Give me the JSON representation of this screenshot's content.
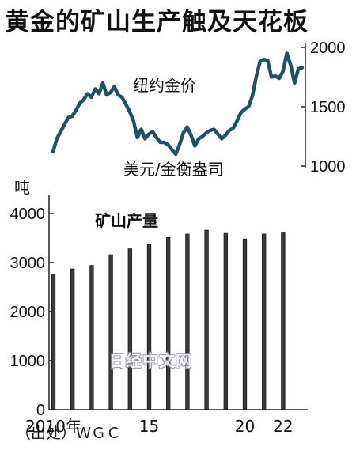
{
  "title": "黄金的矿山生产触及天花板",
  "source": "（出处）ＷＧＣ",
  "watermark": "日经中文网",
  "chart_data": [
    {
      "type": "line",
      "series": [
        {
          "name": "纽约金价",
          "values": [
            1120,
            1230,
            1290,
            1350,
            1410,
            1420,
            1470,
            1530,
            1560,
            1610,
            1580,
            1650,
            1610,
            1700,
            1600,
            1620,
            1670,
            1600,
            1580,
            1520,
            1460,
            1380,
            1240,
            1310,
            1230,
            1270,
            1290,
            1240,
            1200,
            1200,
            1180,
            1140,
            1100,
            1180,
            1280,
            1330,
            1260,
            1170,
            1230,
            1250,
            1280,
            1300,
            1310,
            1270,
            1230,
            1260,
            1300,
            1320,
            1380,
            1450,
            1480,
            1500,
            1590,
            1750,
            1880,
            1900,
            1890,
            1750,
            1760,
            1740,
            1800,
            1950,
            1850,
            1700,
            1820,
            1830
          ]
        }
      ],
      "annotation": "美元/金衡盎司",
      "y_ticks": [
        "1000",
        "1500",
        "2000"
      ],
      "ylim": [
        1000,
        2000
      ],
      "y_axis_side": "right"
    },
    {
      "type": "bar",
      "title": "矿山产量",
      "ylabel": "吨",
      "categories": [
        "2010",
        "2011",
        "2012",
        "2013",
        "2014",
        "2015",
        "2016",
        "2017",
        "2018",
        "2019",
        "2020",
        "2021",
        "2022"
      ],
      "values": [
        2750,
        2870,
        2940,
        3160,
        3280,
        3370,
        3510,
        3580,
        3660,
        3610,
        3480,
        3580,
        3620
      ],
      "ylim": [
        0,
        4000
      ],
      "y_ticks": [
        "0",
        "1000",
        "2000",
        "3000",
        "4000"
      ],
      "x_tick_labels": [
        {
          "label": "2010年",
          "category": "2010"
        },
        {
          "label": "15",
          "category": "2015"
        },
        {
          "label": "20",
          "category": "2020"
        },
        {
          "label": "22",
          "category": "2022"
        }
      ]
    }
  ]
}
